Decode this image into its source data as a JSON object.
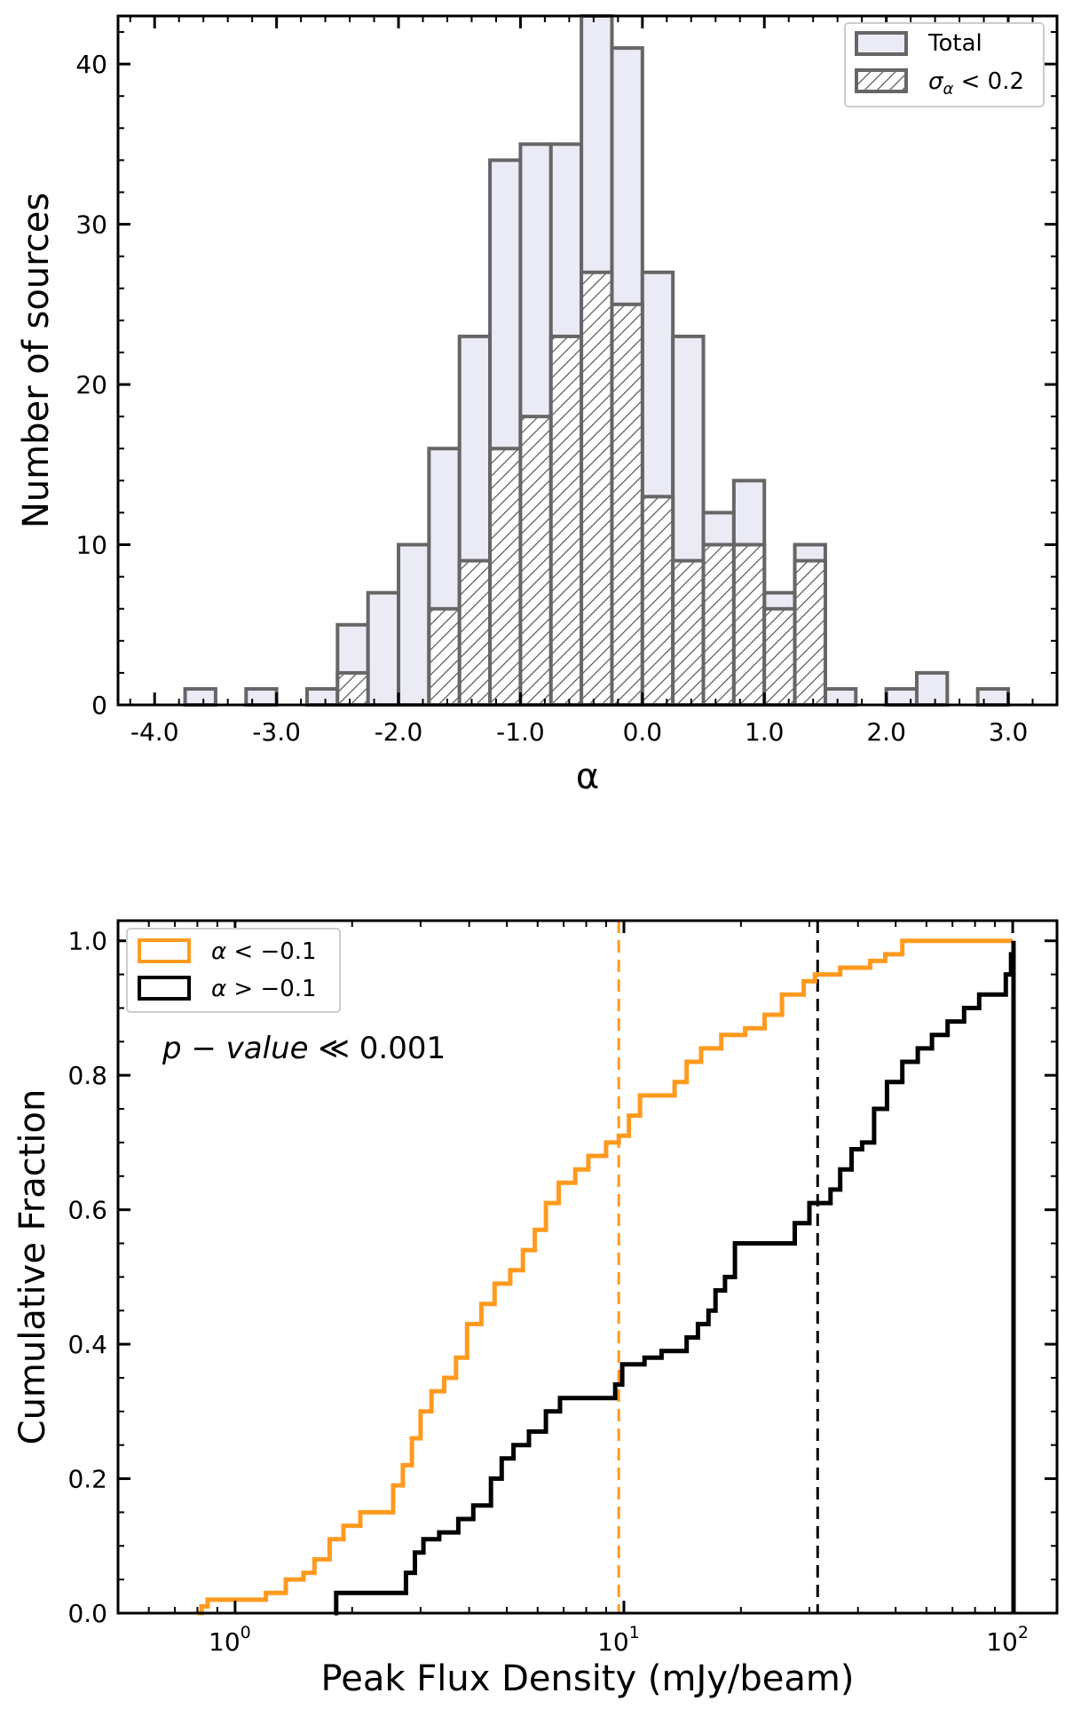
{
  "chart_data": [
    {
      "type": "bar",
      "subtype": "histogram",
      "xlabel": "α",
      "ylabel": "Number of sources",
      "xlim": [
        -4.3,
        3.4
      ],
      "ylim": [
        0,
        43
      ],
      "xticks": [
        -4.0,
        -3.0,
        -2.0,
        -1.0,
        0.0,
        1.0,
        2.0,
        3.0
      ],
      "xtick_labels": [
        "-4.0",
        "-3.0",
        "-2.0",
        "-1.0",
        "0.0",
        "1.0",
        "2.0",
        "3.0"
      ],
      "yticks": [
        0,
        10,
        20,
        30,
        40
      ],
      "ytick_labels": [
        "0",
        "10",
        "20",
        "30",
        "40"
      ],
      "bin_edges": [
        -3.75,
        -3.5,
        -3.25,
        -3.0,
        -2.75,
        -2.5,
        -2.25,
        -2.0,
        -1.75,
        -1.5,
        -1.25,
        -1.0,
        -0.75,
        -0.5,
        -0.25,
        0.0,
        0.25,
        0.5,
        0.75,
        1.0,
        1.25,
        1.5,
        1.75,
        2.0,
        2.25,
        2.5,
        2.75,
        3.0
      ],
      "legend_position": "top-right",
      "series": [
        {
          "name": "Total",
          "color": "#ebebf5",
          "values": [
            1,
            0,
            1,
            0,
            1,
            5,
            7,
            10,
            16,
            23,
            34,
            35,
            35,
            43,
            41,
            27,
            23,
            12,
            14,
            7,
            10,
            1,
            0,
            1,
            2,
            0,
            1
          ]
        },
        {
          "name": "σ_α < 0.2",
          "color": "#ffffff",
          "hatch": "diagonal",
          "values": [
            0,
            0,
            0,
            0,
            0,
            2,
            0,
            0,
            6,
            9,
            16,
            18,
            23,
            27,
            25,
            13,
            9,
            10,
            10,
            6,
            9,
            0,
            0,
            0,
            0,
            0,
            0
          ]
        }
      ]
    },
    {
      "type": "line",
      "subtype": "cumulative-step",
      "xlabel": "Peak Flux Density (mJy/beam)",
      "ylabel": "Cumulative Fraction",
      "xscale": "log",
      "xlim": [
        0.5,
        130
      ],
      "ylim": [
        0,
        1.03
      ],
      "xticks": [
        1,
        10,
        100
      ],
      "xtick_labels": [
        "10",
        "10",
        "10"
      ],
      "xtick_exponents": [
        "0",
        "1",
        "2"
      ],
      "yticks": [
        0.0,
        0.2,
        0.4,
        0.6,
        0.8,
        1.0
      ],
      "ytick_labels": [
        "0.0",
        "0.2",
        "0.4",
        "0.6",
        "0.8",
        "1.0"
      ],
      "legend_position": "top-left",
      "annotation": {
        "main": "p − value",
        "rest": " ≪ 0.001"
      },
      "series": [
        {
          "name": "α < −0.1",
          "color": "#ff9a1f",
          "median_line": 9.7,
          "points": [
            [
              0.8,
              0.0
            ],
            [
              0.82,
              0.01
            ],
            [
              0.85,
              0.02
            ],
            [
              1.1,
              0.02
            ],
            [
              1.2,
              0.03
            ],
            [
              1.35,
              0.05
            ],
            [
              1.5,
              0.06
            ],
            [
              1.6,
              0.08
            ],
            [
              1.75,
              0.11
            ],
            [
              1.9,
              0.13
            ],
            [
              2.1,
              0.15
            ],
            [
              2.45,
              0.15
            ],
            [
              2.55,
              0.19
            ],
            [
              2.7,
              0.22
            ],
            [
              2.85,
              0.26
            ],
            [
              3.0,
              0.3
            ],
            [
              3.2,
              0.33
            ],
            [
              3.45,
              0.35
            ],
            [
              3.7,
              0.38
            ],
            [
              3.95,
              0.43
            ],
            [
              4.3,
              0.46
            ],
            [
              4.65,
              0.49
            ],
            [
              5.1,
              0.51
            ],
            [
              5.5,
              0.54
            ],
            [
              5.9,
              0.57
            ],
            [
              6.3,
              0.61
            ],
            [
              6.8,
              0.64
            ],
            [
              7.5,
              0.66
            ],
            [
              8.1,
              0.68
            ],
            [
              9.0,
              0.7
            ],
            [
              9.7,
              0.71
            ],
            [
              10.3,
              0.74
            ],
            [
              11.0,
              0.77
            ],
            [
              12.3,
              0.77
            ],
            [
              13.5,
              0.79
            ],
            [
              14.5,
              0.82
            ],
            [
              15.8,
              0.84
            ],
            [
              17.8,
              0.86
            ],
            [
              20.5,
              0.87
            ],
            [
              23.0,
              0.89
            ],
            [
              25.5,
              0.92
            ],
            [
              29.0,
              0.94
            ],
            [
              31.0,
              0.95
            ],
            [
              36.0,
              0.96
            ],
            [
              43.0,
              0.97
            ],
            [
              47.0,
              0.98
            ],
            [
              52.0,
              1.0
            ],
            [
              100,
              1.0
            ]
          ]
        },
        {
          "name": "α > −0.1",
          "color": "#000000",
          "median_line": 31.5,
          "points": [
            [
              1.8,
              0.0
            ],
            [
              1.82,
              0.03
            ],
            [
              2.6,
              0.03
            ],
            [
              2.75,
              0.06
            ],
            [
              2.9,
              0.09
            ],
            [
              3.05,
              0.11
            ],
            [
              3.35,
              0.12
            ],
            [
              3.75,
              0.14
            ],
            [
              4.1,
              0.16
            ],
            [
              4.55,
              0.2
            ],
            [
              4.85,
              0.23
            ],
            [
              5.2,
              0.25
            ],
            [
              5.7,
              0.27
            ],
            [
              6.3,
              0.3
            ],
            [
              6.85,
              0.32
            ],
            [
              9.5,
              0.34
            ],
            [
              9.9,
              0.37
            ],
            [
              11.3,
              0.38
            ],
            [
              12.5,
              0.39
            ],
            [
              14.5,
              0.41
            ],
            [
              15.5,
              0.43
            ],
            [
              16.5,
              0.45
            ],
            [
              17.2,
              0.48
            ],
            [
              18.2,
              0.5
            ],
            [
              19.3,
              0.55
            ],
            [
              26.5,
              0.55
            ],
            [
              27.5,
              0.58
            ],
            [
              30.0,
              0.61
            ],
            [
              34.0,
              0.63
            ],
            [
              36.0,
              0.66
            ],
            [
              38.5,
              0.69
            ],
            [
              41.0,
              0.7
            ],
            [
              44.0,
              0.75
            ],
            [
              47.5,
              0.79
            ],
            [
              52.0,
              0.82
            ],
            [
              57.0,
              0.84
            ],
            [
              62.0,
              0.86
            ],
            [
              68.0,
              0.88
            ],
            [
              75.0,
              0.9
            ],
            [
              82.0,
              0.92
            ],
            [
              91.0,
              0.92
            ],
            [
              96.0,
              0.95
            ],
            [
              99.0,
              0.98
            ],
            [
              100.5,
              1.0
            ]
          ]
        }
      ]
    }
  ]
}
